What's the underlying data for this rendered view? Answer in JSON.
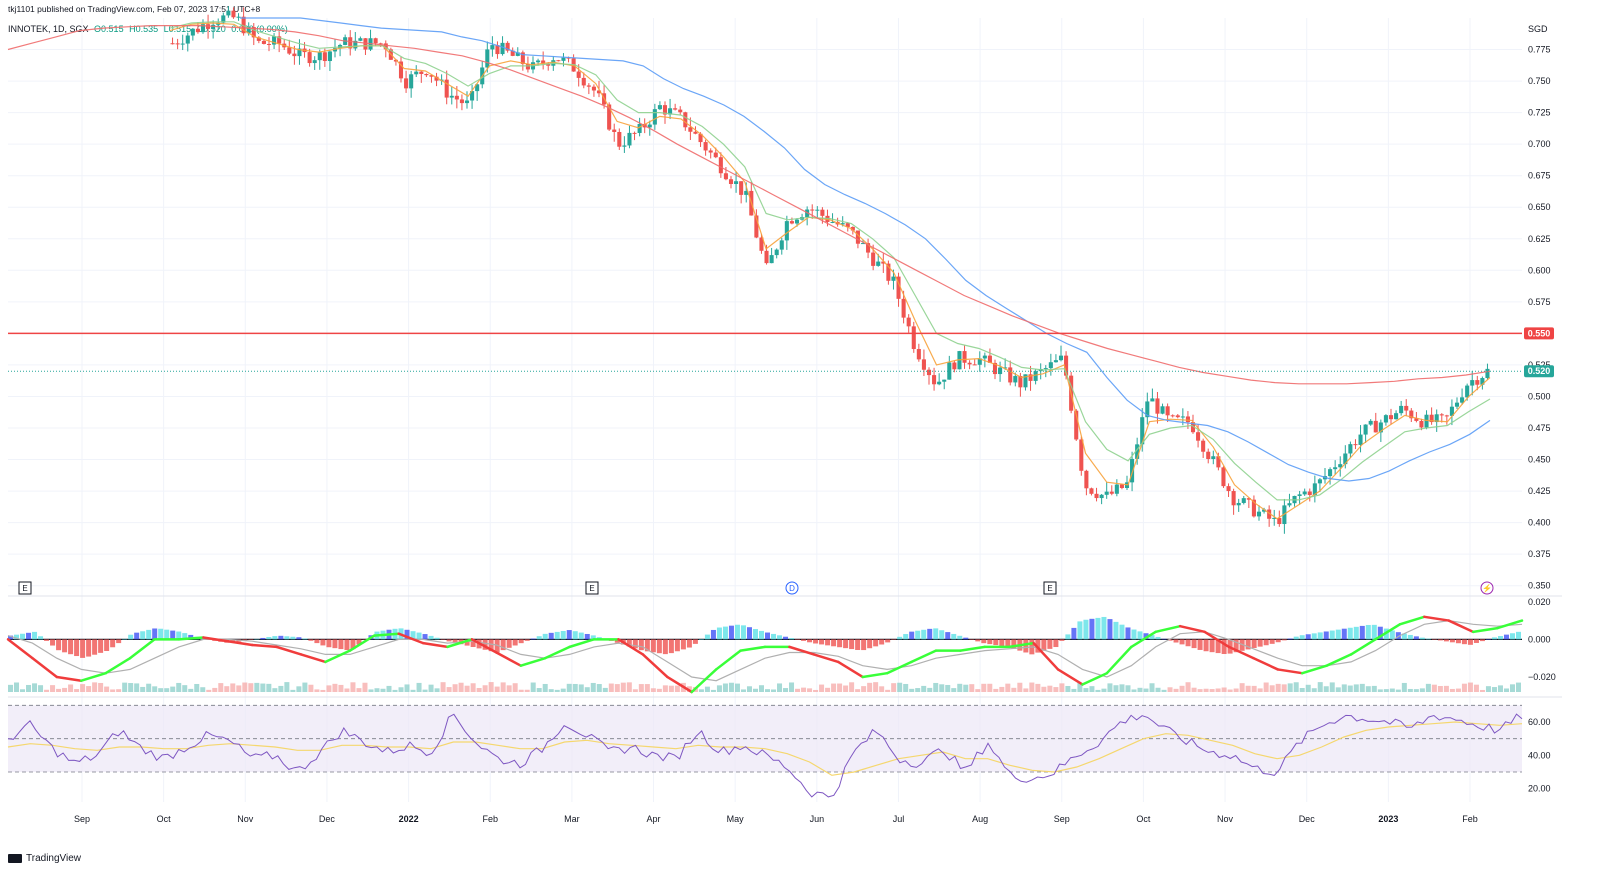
{
  "header": {
    "publisher": "tkj1101 published on TradingView.com, Feb 07, 2023 17:51 UTC+8",
    "ticker": "INNOTEK, 1D, SGX",
    "open": "O0.515",
    "high": "H0.535",
    "low": "L0.515",
    "close": "C0.520",
    "change": "0.000 (0.00%)"
  },
  "currency": "SGD",
  "footer": {
    "brand": "TradingView"
  },
  "colors": {
    "up": "#26a69a",
    "down": "#ef5350",
    "ema_fast": "#f7a23b",
    "ema_mid": "#8fd18f",
    "ema_slow": "#5b9cf6",
    "ema_long": "#ef6b6b",
    "resistance": "#ef4444",
    "macd_up": "#39ff39",
    "macd_down": "#f03c3c",
    "rsi": "#7e57c2",
    "rsi_ma": "#f5d76e",
    "rsi_band": "#ede7f6"
  },
  "chart_data": [
    {
      "type": "candlestick",
      "title": "",
      "price_axis_ticks": [
        "0.775",
        "0.750",
        "0.725",
        "0.700",
        "0.675",
        "0.650",
        "0.625",
        "0.600",
        "0.575",
        "0.550",
        "0.525",
        "0.500",
        "0.475",
        "0.450",
        "0.425",
        "0.400",
        "0.375",
        "0.350"
      ],
      "y_range": [
        0.345,
        0.8
      ],
      "x_ticks": [
        "Sep",
        "Oct",
        "Nov",
        "Dec",
        "2022",
        "Feb",
        "Mar",
        "Apr",
        "May",
        "Jun",
        "Jul",
        "Aug",
        "Sep",
        "Oct",
        "Nov",
        "Dec",
        "2023",
        "Feb"
      ],
      "x_tick_bold": [
        "2022",
        "2023"
      ],
      "horizontal_line": {
        "value": 0.55,
        "label": "0.550"
      },
      "last_price": {
        "value": 0.52,
        "label": "0.520"
      },
      "event_markers": [
        {
          "type": "E",
          "at": "Aug 2021"
        },
        {
          "type": "E",
          "at": "Feb 2022"
        },
        {
          "type": "D",
          "at": "May 2022"
        },
        {
          "type": "E",
          "at": "Aug 2022"
        },
        {
          "type": "flash",
          "at": "Feb 2023"
        }
      ],
      "price_path": [
        0.78,
        0.79,
        0.8,
        0.8,
        0.78,
        0.78,
        0.77,
        0.77,
        0.78,
        0.78,
        0.78,
        0.75,
        0.76,
        0.74,
        0.73,
        0.78,
        0.77,
        0.76,
        0.77,
        0.76,
        0.74,
        0.7,
        0.71,
        0.73,
        0.72,
        0.7,
        0.68,
        0.66,
        0.6,
        0.64,
        0.65,
        0.64,
        0.63,
        0.61,
        0.59,
        0.54,
        0.51,
        0.53,
        0.53,
        0.52,
        0.51,
        0.52,
        0.53,
        0.43,
        0.42,
        0.43,
        0.5,
        0.48,
        0.48,
        0.45,
        0.42,
        0.41,
        0.4,
        0.42,
        0.43,
        0.45,
        0.47,
        0.48,
        0.49,
        0.48,
        0.48,
        0.51,
        0.52
      ],
      "overlays": [
        {
          "name": "ema_fast",
          "values": [
            0.79,
            0.795,
            0.796,
            0.795,
            0.785,
            0.78,
            0.775,
            0.773,
            0.776,
            0.778,
            0.778,
            0.76,
            0.758,
            0.748,
            0.738,
            0.762,
            0.766,
            0.763,
            0.765,
            0.762,
            0.748,
            0.718,
            0.713,
            0.722,
            0.72,
            0.707,
            0.69,
            0.67,
            0.617,
            0.63,
            0.642,
            0.64,
            0.633,
            0.617,
            0.598,
            0.56,
            0.525,
            0.529,
            0.53,
            0.524,
            0.515,
            0.518,
            0.525,
            0.455,
            0.432,
            0.43,
            0.48,
            0.482,
            0.481,
            0.46,
            0.43,
            0.415,
            0.403,
            0.414,
            0.425,
            0.443,
            0.462,
            0.474,
            0.485,
            0.481,
            0.48,
            0.5,
            0.515
          ]
        },
        {
          "name": "ema_mid",
          "values": [
            0.792,
            0.796,
            0.797,
            0.797,
            0.79,
            0.785,
            0.78,
            0.776,
            0.777,
            0.778,
            0.778,
            0.768,
            0.764,
            0.756,
            0.746,
            0.756,
            0.762,
            0.762,
            0.764,
            0.763,
            0.755,
            0.735,
            0.725,
            0.725,
            0.723,
            0.714,
            0.7,
            0.682,
            0.645,
            0.64,
            0.642,
            0.641,
            0.637,
            0.625,
            0.61,
            0.58,
            0.55,
            0.542,
            0.538,
            0.531,
            0.523,
            0.521,
            0.522,
            0.48,
            0.458,
            0.449,
            0.47,
            0.475,
            0.477,
            0.466,
            0.447,
            0.432,
            0.418,
            0.418,
            0.422,
            0.434,
            0.448,
            0.46,
            0.472,
            0.475,
            0.477,
            0.488,
            0.498
          ]
        },
        {
          "name": "ema_slow",
          "values": [
            0.8,
            0.8,
            0.8,
            0.8,
            0.798,
            0.796,
            0.794,
            0.792,
            0.791,
            0.79,
            0.789,
            0.785,
            0.782,
            0.777,
            0.771,
            0.77,
            0.769,
            0.768,
            0.767,
            0.766,
            0.762,
            0.752,
            0.744,
            0.738,
            0.731,
            0.722,
            0.71,
            0.697,
            0.68,
            0.668,
            0.66,
            0.653,
            0.645,
            0.636,
            0.625,
            0.609,
            0.592,
            0.58,
            0.57,
            0.56,
            0.55,
            0.542,
            0.535,
            0.515,
            0.497,
            0.485,
            0.481,
            0.479,
            0.477,
            0.472,
            0.464,
            0.455,
            0.446,
            0.44,
            0.435,
            0.433,
            0.435,
            0.441,
            0.449,
            0.456,
            0.462,
            0.47,
            0.481
          ]
        },
        {
          "name": "ema_long",
          "values": [
            0.775,
            0.78,
            0.785,
            0.79,
            0.792,
            0.793,
            0.794,
            0.794,
            0.794,
            0.793,
            0.792,
            0.791,
            0.789,
            0.786,
            0.782,
            0.78,
            0.778,
            0.776,
            0.773,
            0.77,
            0.765,
            0.759,
            0.752,
            0.745,
            0.738,
            0.73,
            0.721,
            0.711,
            0.7,
            0.69,
            0.68,
            0.67,
            0.66,
            0.65,
            0.64,
            0.63,
            0.62,
            0.61,
            0.6,
            0.59,
            0.58,
            0.572,
            0.564,
            0.557,
            0.55,
            0.544,
            0.538,
            0.533,
            0.528,
            0.523,
            0.519,
            0.516,
            0.513,
            0.511,
            0.51,
            0.51,
            0.51,
            0.511,
            0.512,
            0.514,
            0.515,
            0.517,
            0.52
          ]
        }
      ]
    },
    {
      "type": "bar",
      "title": "",
      "y_ticks": [
        "0.020",
        "0.000",
        "−0.020"
      ],
      "y_range": [
        -0.028,
        0.022
      ],
      "histogram": [
        0.002,
        0.004,
        -0.006,
        -0.01,
        -0.006,
        0.003,
        0.006,
        0.004,
        0.0,
        -0.002,
        0.0,
        0.002,
        0.001,
        -0.004,
        -0.006,
        0.004,
        0.006,
        0.003,
        -0.001,
        -0.004,
        -0.007,
        -0.002,
        0.003,
        0.005,
        0.002,
        -0.002,
        -0.006,
        -0.008,
        -0.004,
        0.006,
        0.008,
        0.004,
        0.001,
        -0.002,
        -0.004,
        -0.006,
        -0.002,
        0.004,
        0.006,
        0.002,
        -0.002,
        -0.004,
        -0.008,
        -0.004,
        0.01,
        0.012,
        0.006,
        0.002,
        -0.002,
        -0.006,
        -0.008,
        -0.005,
        -0.002,
        0.002,
        0.004,
        0.006,
        0.008,
        0.004,
        0.001,
        -0.001,
        -0.003,
        0.001,
        0.004
      ],
      "series": [
        {
          "name": "macd",
          "values": [
            0.0,
            -0.01,
            -0.02,
            -0.022,
            -0.018,
            -0.01,
            0.0,
            0.0,
            0.001,
            -0.001,
            -0.003,
            -0.004,
            -0.008,
            -0.012,
            -0.006,
            0.002,
            0.003,
            -0.002,
            -0.004,
            0.0,
            -0.007,
            -0.014,
            -0.01,
            -0.004,
            0.0,
            0.0,
            -0.008,
            -0.02,
            -0.028,
            -0.016,
            -0.006,
            -0.004,
            -0.004,
            -0.008,
            -0.012,
            -0.02,
            -0.018,
            -0.012,
            -0.006,
            -0.006,
            -0.004,
            -0.004,
            -0.002,
            -0.016,
            -0.024,
            -0.018,
            -0.004,
            0.004,
            0.007,
            0.004,
            -0.004,
            -0.01,
            -0.016,
            -0.018,
            -0.014,
            -0.008,
            0.0,
            0.008,
            0.012,
            0.01,
            0.004,
            0.006,
            0.01
          ]
        },
        {
          "name": "signal",
          "values": [
            0.002,
            -0.002,
            -0.01,
            -0.016,
            -0.018,
            -0.016,
            -0.01,
            -0.004,
            0.0,
            0.0,
            -0.001,
            -0.003,
            -0.005,
            -0.008,
            -0.008,
            -0.004,
            0.0,
            0.0,
            -0.002,
            -0.001,
            -0.003,
            -0.008,
            -0.01,
            -0.008,
            -0.004,
            -0.002,
            -0.004,
            -0.012,
            -0.02,
            -0.022,
            -0.016,
            -0.01,
            -0.007,
            -0.007,
            -0.009,
            -0.014,
            -0.016,
            -0.014,
            -0.01,
            -0.008,
            -0.006,
            -0.005,
            -0.004,
            -0.008,
            -0.016,
            -0.02,
            -0.014,
            -0.004,
            0.003,
            0.004,
            0.0,
            -0.005,
            -0.01,
            -0.014,
            -0.014,
            -0.012,
            -0.006,
            0.002,
            0.008,
            0.01,
            0.008,
            0.007,
            0.008
          ]
        }
      ]
    },
    {
      "type": "line",
      "title": "",
      "y_ticks": [
        "60.00",
        "40.00",
        "20.00"
      ],
      "y_range": [
        12,
        72
      ],
      "band": [
        30,
        70
      ],
      "mid": 50,
      "series": [
        {
          "name": "rsi",
          "values": [
            50,
            58,
            44,
            35,
            40,
            55,
            44,
            38,
            45,
            52,
            48,
            38,
            40,
            30,
            42,
            55,
            48,
            42,
            46,
            42,
            65,
            48,
            38,
            35,
            44,
            60,
            52,
            42,
            45,
            40,
            38,
            55,
            42,
            46,
            40,
            33,
            18,
            15,
            42,
            55,
            38,
            35,
            44,
            30,
            48,
            28,
            26,
            30,
            40,
            48,
            60,
            65,
            55,
            48,
            42,
            40,
            32,
            30,
            48,
            58,
            64,
            62,
            60,
            56,
            64,
            62,
            58,
            55,
            64
          ]
        },
        {
          "name": "rsi_ma",
          "values": [
            45,
            47,
            46,
            44,
            43,
            45,
            45,
            44,
            44,
            46,
            47,
            46,
            45,
            43,
            43,
            46,
            46,
            45,
            45,
            44,
            48,
            48,
            46,
            44,
            44,
            48,
            49,
            47,
            46,
            45,
            44,
            46,
            45,
            45,
            44,
            41,
            36,
            28,
            30,
            34,
            38,
            40,
            42,
            38,
            38,
            34,
            31,
            30,
            33,
            38,
            44,
            50,
            53,
            52,
            49,
            46,
            41,
            38,
            40,
            45,
            51,
            55,
            57,
            58,
            59,
            60,
            59,
            58,
            59
          ]
        }
      ]
    }
  ]
}
